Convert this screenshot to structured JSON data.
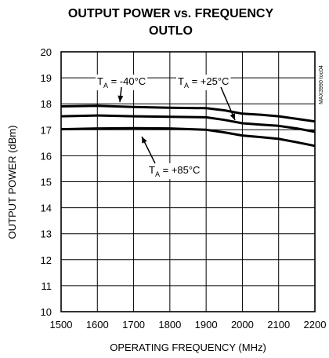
{
  "chart_data": {
    "type": "line",
    "title": "OUTPUT POWER vs. FREQUENCY",
    "subtitle": "OUTLO",
    "xlabel": "OPERATING FREQUENCY (MHz)",
    "ylabel": "OUTPUT POWER (dBm)",
    "xlim": [
      1500,
      2200
    ],
    "ylim": [
      10,
      20
    ],
    "x_ticks": [
      "1500",
      "1600",
      "1700",
      "1800",
      "1900",
      "2000",
      "2100",
      "2200"
    ],
    "y_ticks": [
      "10",
      "11",
      "12",
      "13",
      "14",
      "15",
      "16",
      "17",
      "18",
      "19",
      "20"
    ],
    "grid": true,
    "figure_id": "MAX3990 toc04",
    "series": [
      {
        "name": "TA = -40°C",
        "label": {
          "main": "T",
          "sub": "A",
          "rest": " = -40°C"
        },
        "points": [
          [
            1500,
            17.9
          ],
          [
            1600,
            17.92
          ],
          [
            1700,
            17.88
          ],
          [
            1800,
            17.85
          ],
          [
            1900,
            17.83
          ],
          [
            1950,
            17.75
          ],
          [
            2000,
            17.62
          ],
          [
            2050,
            17.58
          ],
          [
            2100,
            17.52
          ],
          [
            2150,
            17.42
          ],
          [
            2200,
            17.32
          ]
        ]
      },
      {
        "name": "TA = +25°C",
        "label": {
          "main": "T",
          "sub": "A",
          "rest": " = +25°C"
        },
        "points": [
          [
            1500,
            17.52
          ],
          [
            1600,
            17.55
          ],
          [
            1700,
            17.52
          ],
          [
            1800,
            17.5
          ],
          [
            1900,
            17.48
          ],
          [
            1950,
            17.38
          ],
          [
            2000,
            17.25
          ],
          [
            2050,
            17.2
          ],
          [
            2100,
            17.15
          ],
          [
            2150,
            17.05
          ],
          [
            2200,
            16.92
          ]
        ]
      },
      {
        "name": "TA = +85°C",
        "label": {
          "main": "T",
          "sub": "A",
          "rest": " = +85°C"
        },
        "points": [
          [
            1500,
            17.02
          ],
          [
            1600,
            17.05
          ],
          [
            1700,
            17.06
          ],
          [
            1800,
            17.05
          ],
          [
            1900,
            17.0
          ],
          [
            1950,
            16.9
          ],
          [
            2000,
            16.78
          ],
          [
            2050,
            16.72
          ],
          [
            2100,
            16.65
          ],
          [
            2150,
            16.52
          ],
          [
            2200,
            16.38
          ]
        ]
      }
    ]
  }
}
